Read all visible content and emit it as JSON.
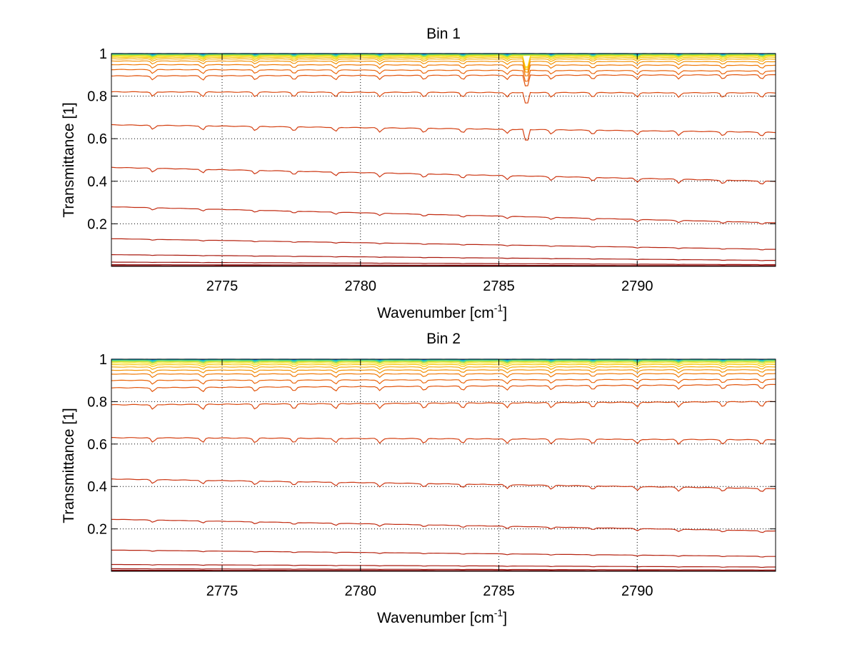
{
  "chart_data": [
    {
      "type": "line",
      "title": "Bin 1",
      "xlabel": "Wavenumber [cm",
      "xlabel_superscript": "-1",
      "xlabel_suffix": "]",
      "ylabel": "Transmittance [1]",
      "xlim": [
        2771,
        2795
      ],
      "ylim": [
        0,
        1
      ],
      "xticks": [
        2775,
        2780,
        2785,
        2790
      ],
      "yticks": [
        0.2,
        0.4,
        0.6,
        0.8,
        1
      ],
      "ytick_labels": [
        "0.2",
        "0.4",
        "0.6",
        "0.8",
        "1"
      ],
      "grid": "dotted",
      "legend": "none",
      "series": [
        {
          "start": 1.0,
          "end": 1.0,
          "depth": 0.004,
          "color": "#0b63d6"
        },
        {
          "start": 0.999,
          "end": 0.999,
          "depth": 0.005,
          "color": "#129ad9"
        },
        {
          "start": 0.998,
          "end": 0.998,
          "depth": 0.006,
          "color": "#1cc0d0"
        },
        {
          "start": 0.996,
          "end": 0.997,
          "depth": 0.007,
          "color": "#33d1a8"
        },
        {
          "start": 0.994,
          "end": 0.995,
          "depth": 0.008,
          "color": "#86d85a"
        },
        {
          "start": 0.991,
          "end": 0.992,
          "depth": 0.009,
          "color": "#cfe22a"
        },
        {
          "start": 0.987,
          "end": 0.988,
          "depth": 0.01,
          "color": "#f6e10e"
        },
        {
          "start": 0.982,
          "end": 0.982,
          "depth": 0.011,
          "color": "#f8c80a"
        },
        {
          "start": 0.975,
          "end": 0.974,
          "depth": 0.012,
          "color": "#f7ae08"
        },
        {
          "start": 0.965,
          "end": 0.962,
          "depth": 0.014,
          "color": "#f39307"
        },
        {
          "start": 0.948,
          "end": 0.945,
          "depth": 0.016,
          "color": "#ef7a08"
        },
        {
          "start": 0.925,
          "end": 0.918,
          "depth": 0.018,
          "color": "#ea650b"
        },
        {
          "start": 0.895,
          "end": 0.9,
          "depth": 0.02,
          "color": "#e2560e"
        },
        {
          "start": 0.82,
          "end": 0.815,
          "depth": 0.022,
          "color": "#db4a10"
        },
        {
          "start": 0.665,
          "end": 0.63,
          "depth": 0.02,
          "color": "#d44012"
        },
        {
          "start": 0.465,
          "end": 0.4,
          "depth": 0.018,
          "color": "#cc3612"
        },
        {
          "start": 0.28,
          "end": 0.205,
          "depth": 0.01,
          "color": "#c22c12"
        },
        {
          "start": 0.13,
          "end": 0.08,
          "depth": 0.004,
          "color": "#b62310"
        },
        {
          "start": 0.055,
          "end": 0.028,
          "depth": 0.002,
          "color": "#a9190e"
        },
        {
          "start": 0.02,
          "end": 0.008,
          "depth": 0.001,
          "color": "#9a100c"
        },
        {
          "start": 0.008,
          "end": 0.003,
          "depth": 0.0,
          "color": "#8a0a0a"
        },
        {
          "start": 0.003,
          "end": 0.001,
          "depth": 0.0,
          "color": "#7a0606"
        }
      ]
    },
    {
      "type": "line",
      "title": "Bin 2",
      "xlabel": "Wavenumber [cm",
      "xlabel_superscript": "-1",
      "xlabel_suffix": "]",
      "ylabel": "Transmittance [1]",
      "xlim": [
        2771,
        2795
      ],
      "ylim": [
        0,
        1
      ],
      "xticks": [
        2775,
        2780,
        2785,
        2790
      ],
      "yticks": [
        0.2,
        0.4,
        0.6,
        0.8,
        1
      ],
      "ytick_labels": [
        "0.2",
        "0.4",
        "0.6",
        "0.8",
        "1"
      ],
      "grid": "dotted",
      "legend": "none",
      "series": [
        {
          "start": 1.0,
          "end": 1.0,
          "depth": 0.004,
          "color": "#0b63d6"
        },
        {
          "start": 0.999,
          "end": 0.999,
          "depth": 0.005,
          "color": "#129ad9"
        },
        {
          "start": 0.997,
          "end": 0.998,
          "depth": 0.006,
          "color": "#1cc0d0"
        },
        {
          "start": 0.995,
          "end": 0.996,
          "depth": 0.007,
          "color": "#33d1a8"
        },
        {
          "start": 0.992,
          "end": 0.993,
          "depth": 0.008,
          "color": "#86d85a"
        },
        {
          "start": 0.988,
          "end": 0.989,
          "depth": 0.009,
          "color": "#cfe22a"
        },
        {
          "start": 0.982,
          "end": 0.983,
          "depth": 0.01,
          "color": "#f6e10e"
        },
        {
          "start": 0.974,
          "end": 0.975,
          "depth": 0.011,
          "color": "#f8c80a"
        },
        {
          "start": 0.963,
          "end": 0.964,
          "depth": 0.012,
          "color": "#f7ae08"
        },
        {
          "start": 0.948,
          "end": 0.95,
          "depth": 0.014,
          "color": "#f39307"
        },
        {
          "start": 0.93,
          "end": 0.932,
          "depth": 0.016,
          "color": "#ef7a08"
        },
        {
          "start": 0.9,
          "end": 0.905,
          "depth": 0.018,
          "color": "#ea650b"
        },
        {
          "start": 0.865,
          "end": 0.88,
          "depth": 0.02,
          "color": "#e2560e"
        },
        {
          "start": 0.785,
          "end": 0.8,
          "depth": 0.024,
          "color": "#db4a10"
        },
        {
          "start": 0.63,
          "end": 0.62,
          "depth": 0.022,
          "color": "#d44012"
        },
        {
          "start": 0.435,
          "end": 0.39,
          "depth": 0.018,
          "color": "#cc3612"
        },
        {
          "start": 0.245,
          "end": 0.19,
          "depth": 0.01,
          "color": "#c22c12"
        },
        {
          "start": 0.1,
          "end": 0.07,
          "depth": 0.004,
          "color": "#b62310"
        },
        {
          "start": 0.032,
          "end": 0.02,
          "depth": 0.002,
          "color": "#a9190e"
        },
        {
          "start": 0.012,
          "end": 0.006,
          "depth": 0.001,
          "color": "#9a100c"
        },
        {
          "start": 0.005,
          "end": 0.002,
          "depth": 0.0,
          "color": "#8a0a0a"
        },
        {
          "start": 0.002,
          "end": 0.001,
          "depth": 0.0,
          "color": "#7a0606"
        }
      ]
    }
  ]
}
